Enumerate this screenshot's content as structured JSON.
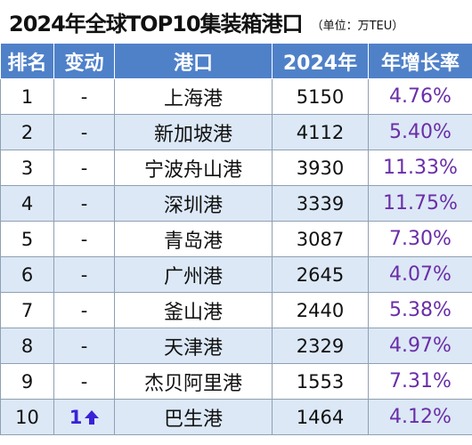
{
  "title": "2024年全球TOP10集装箱港口",
  "unit": "（单位：万TEU）",
  "columns": [
    "排名",
    "变动",
    "港口",
    "2024年",
    "年增长率"
  ],
  "rows": [
    {
      "rank": "1",
      "change": "-",
      "port": "上海港",
      "volume": "5150",
      "growth": "4.76%"
    },
    {
      "rank": "2",
      "change": "-",
      "port": "新加坡港",
      "volume": "4112",
      "growth": "5.40%"
    },
    {
      "rank": "3",
      "change": "-",
      "port": "宁波舟山港",
      "volume": "3930",
      "growth": "11.33%"
    },
    {
      "rank": "4",
      "change": "-",
      "port": "深圳港",
      "volume": "3339",
      "growth": "11.75%"
    },
    {
      "rank": "5",
      "change": "-",
      "port": "青岛港",
      "volume": "3087",
      "growth": "7.30%"
    },
    {
      "rank": "6",
      "change": "-",
      "port": "广州港",
      "volume": "2645",
      "growth": "4.07%"
    },
    {
      "rank": "7",
      "change": "-",
      "port": "釜山港",
      "volume": "2440",
      "growth": "5.38%"
    },
    {
      "rank": "8",
      "change": "-",
      "port": "天津港",
      "volume": "2329",
      "growth": "4.97%"
    },
    {
      "rank": "9",
      "change": "-",
      "port": "杰贝阿里港",
      "volume": "1553",
      "growth": "7.31%"
    },
    {
      "rank": "10",
      "change": "1",
      "change_icon": "up-arrow-icon",
      "port": "巴生港",
      "volume": "1464",
      "growth": "4.12%"
    }
  ],
  "colors": {
    "header_bg": "#4f81c9",
    "row_alt_bg": "#dce8f6",
    "growth_text": "#6a2ea8",
    "change_up": "#3a22d8"
  }
}
